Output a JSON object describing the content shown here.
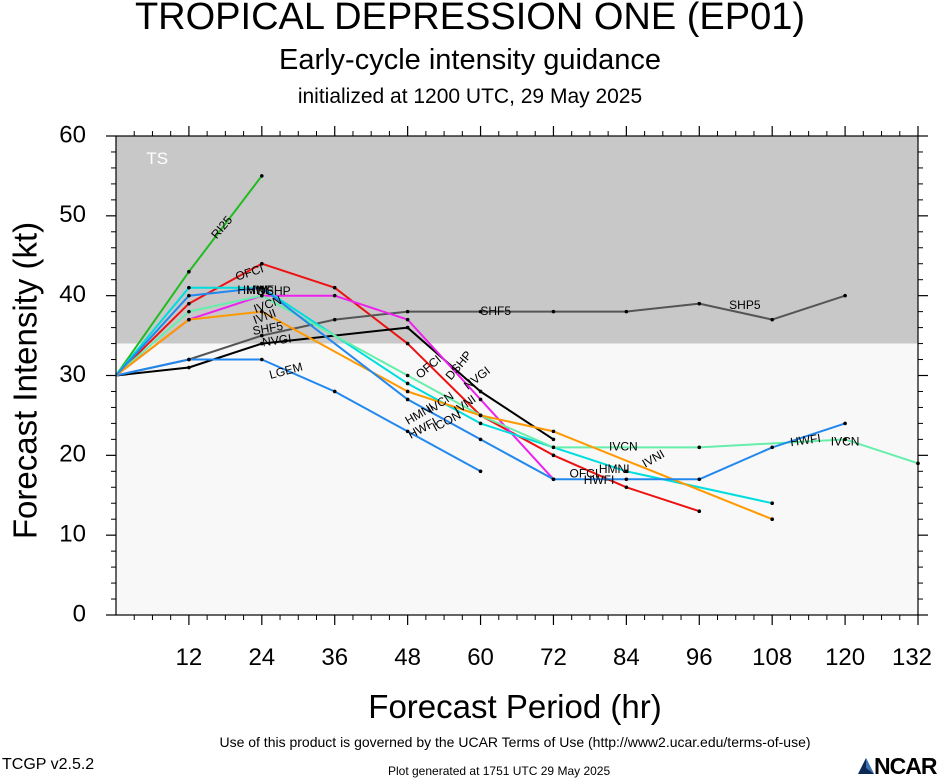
{
  "header": {
    "title": "TROPICAL DEPRESSION ONE (EP01)",
    "subtitle": "Early-cycle intensity guidance",
    "initialized": "initialized at 1200 UTC, 29 May 2025"
  },
  "footer": {
    "terms": "Use of this product is governed by the UCAR Terms of Use (http://www2.ucar.edu/terms-of-use)",
    "version": "TCGP v2.5.2",
    "generated": "Plot generated at 1751 UTC   29 May 2025",
    "logo_text": "NCAR"
  },
  "chart_data": {
    "type": "line",
    "xlabel": "Forecast Period (hr)",
    "ylabel": "Forecast Intensity (kt)",
    "xlim": [
      0,
      132
    ],
    "ylim": [
      0,
      60
    ],
    "xticks": [
      12,
      24,
      36,
      48,
      60,
      72,
      84,
      96,
      108,
      120,
      132
    ],
    "yticks": [
      0,
      10,
      20,
      30,
      40,
      50,
      60
    ],
    "bands": [
      {
        "label": "TS",
        "from": 34,
        "to": 60,
        "color": "#c8c8c8"
      },
      {
        "label": "",
        "from": 0,
        "to": 34,
        "color": "#f8f8f8"
      }
    ],
    "series": [
      {
        "name": "RI25",
        "color": "#22bb22",
        "x": [
          0,
          12,
          24
        ],
        "y": [
          30,
          43,
          55
        ]
      },
      {
        "name": "OFCI",
        "color": "#ee1111",
        "x": [
          0,
          12,
          24,
          36,
          48,
          60,
          72,
          84,
          96
        ],
        "y": [
          30,
          39,
          44,
          41,
          34,
          25,
          20,
          16,
          13
        ]
      },
      {
        "name": "SHF5",
        "color": "#555555",
        "x": [
          0,
          12,
          24,
          36,
          48,
          60,
          72,
          84,
          96,
          108,
          120
        ],
        "y": [
          30,
          32,
          35,
          37,
          38,
          38,
          38,
          38,
          39,
          37,
          40
        ]
      },
      {
        "name": "NVGI",
        "color": "#000000",
        "x": [
          0,
          12,
          24,
          48,
          60,
          72
        ],
        "y": [
          30,
          31,
          34,
          36,
          28,
          22
        ]
      },
      {
        "name": "LGEM",
        "color": "#2288ee",
        "x": [
          0,
          12,
          24,
          36,
          48,
          60
        ],
        "y": [
          30,
          32,
          32,
          28,
          23,
          18
        ]
      },
      {
        "name": "DSHP",
        "color": "#ee22ee",
        "x": [
          0,
          12,
          24,
          36,
          48,
          60,
          72
        ],
        "y": [
          30,
          37,
          40,
          40,
          37,
          27,
          17
        ]
      },
      {
        "name": "HMNI",
        "color": "#00dddd",
        "x": [
          0,
          12,
          24,
          48,
          60,
          84,
          108
        ],
        "y": [
          30,
          41,
          41,
          29,
          24,
          18,
          14
        ]
      },
      {
        "name": "IVCN",
        "color": "#66eeaa",
        "x": [
          0,
          12,
          24,
          48,
          60,
          72,
          96,
          120,
          132
        ],
        "y": [
          30,
          38,
          40,
          30,
          25,
          21,
          21,
          22,
          19
        ]
      },
      {
        "name": "IVNI",
        "color": "#ff9900",
        "x": [
          0,
          12,
          24,
          48,
          60,
          72,
          108
        ],
        "y": [
          30,
          37,
          38,
          28,
          25,
          23,
          12
        ]
      },
      {
        "name": "HWFI",
        "color": "#2288ee",
        "x": [
          0,
          12,
          24,
          48,
          60,
          72,
          84,
          96,
          108,
          120
        ],
        "y": [
          30,
          40,
          41,
          27,
          22,
          17,
          17,
          17,
          21,
          24
        ]
      }
    ],
    "labels": [
      {
        "text": "RI25",
        "x": 17.5,
        "y": 48.5,
        "angle": -50
      },
      {
        "text": "OFCI",
        "x": 22,
        "y": 42.8,
        "angle": -18
      },
      {
        "text": "HMNI",
        "x": 22.5,
        "y": 40.6,
        "angle": 0
      },
      {
        "text": "HWFI",
        "x": 24,
        "y": 40.6,
        "angle": 0
      },
      {
        "text": "IVCN",
        "x": 25,
        "y": 38.8,
        "angle": -20
      },
      {
        "text": "DSHP",
        "x": 26,
        "y": 40.5,
        "angle": 0
      },
      {
        "text": "IVNI",
        "x": 24.5,
        "y": 37.3,
        "angle": -20
      },
      {
        "text": "SHF5",
        "x": 25,
        "y": 35.8,
        "angle": -10
      },
      {
        "text": "NVGI",
        "x": 26.5,
        "y": 34.3,
        "angle": -8
      },
      {
        "text": "LGEM",
        "x": 28,
        "y": 30.5,
        "angle": -15
      },
      {
        "text": "SHF5",
        "x": 62.5,
        "y": 38,
        "angle": 0
      },
      {
        "text": "SHP5",
        "x": 103.5,
        "y": 38.7,
        "angle": 0
      },
      {
        "text": "OFCI",
        "x": 51.5,
        "y": 31,
        "angle": -40
      },
      {
        "text": "DSHP",
        "x": 56.5,
        "y": 31.2,
        "angle": -50
      },
      {
        "text": "NVGI",
        "x": 59.5,
        "y": 29.6,
        "angle": -38
      },
      {
        "text": "IVCN",
        "x": 53.5,
        "y": 26.5,
        "angle": -35
      },
      {
        "text": "IVNI",
        "x": 57.5,
        "y": 26.3,
        "angle": -35
      },
      {
        "text": "HMNI",
        "x": 50,
        "y": 25.1,
        "angle": -30
      },
      {
        "text": "ICON",
        "x": 54.5,
        "y": 24.2,
        "angle": -28
      },
      {
        "text": "HWFI",
        "x": 50.5,
        "y": 23.3,
        "angle": -28
      },
      {
        "text": "IVCN",
        "x": 83.5,
        "y": 21,
        "angle": 0
      },
      {
        "text": "IVNI",
        "x": 88.5,
        "y": 19.5,
        "angle": -30
      },
      {
        "text": "HMNI",
        "x": 82,
        "y": 18.2,
        "angle": 0
      },
      {
        "text": "OFCI",
        "x": 77,
        "y": 17.6,
        "angle": 0
      },
      {
        "text": "HWFI",
        "x": 79.5,
        "y": 16.8,
        "angle": 0
      },
      {
        "text": "HWFI",
        "x": 113.5,
        "y": 21.8,
        "angle": -8
      },
      {
        "text": "IVCN",
        "x": 120,
        "y": 21.6,
        "angle": 0
      }
    ]
  }
}
